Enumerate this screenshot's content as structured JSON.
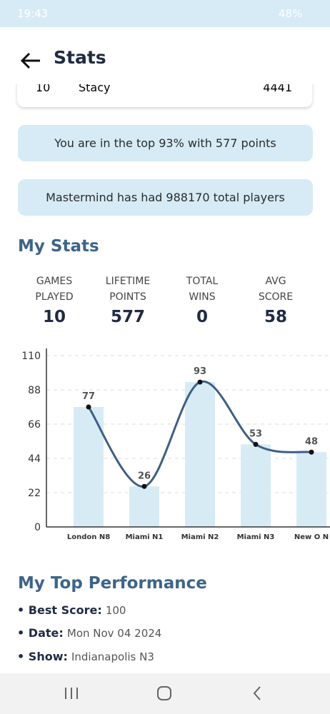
{
  "status_bar": {
    "time": "19:43",
    "battery": "48%"
  },
  "header": {
    "title": "Stats"
  },
  "leaderboard_row": {
    "rank": "10",
    "name": "Stacy",
    "points": "4441"
  },
  "banners": [
    "You are in the top 93% with 577 points",
    "Mastermind has had 988170 total players"
  ],
  "my_stats": {
    "title": "My Stats",
    "items": [
      {
        "label_lines": [
          "GAMES",
          "PLAYED"
        ],
        "value": "10"
      },
      {
        "label_lines": [
          "LIFETIME",
          "POINTS"
        ],
        "value": "577"
      },
      {
        "label_lines": [
          "TOTAL",
          "WINS"
        ],
        "value": "0"
      },
      {
        "label_lines": [
          "AVG",
          "SCORE"
        ],
        "value": "58"
      }
    ]
  },
  "chart_data": {
    "type": "bar-line",
    "categories": [
      "London N8",
      "Miami N1",
      "Miami N2",
      "Miami N3",
      "New O N"
    ],
    "values": [
      77,
      26,
      93,
      53,
      48
    ],
    "bar_color": "#d7ebf5",
    "line_color": "#3d5f86",
    "point_color": "#111111",
    "ylim": [
      0,
      110
    ],
    "yticks": [
      0,
      22,
      44,
      66,
      88,
      110
    ],
    "grid": true
  },
  "top_performance": {
    "title": "My Top Performance",
    "items": [
      {
        "label": "Best Score:",
        "value": "100"
      },
      {
        "label": "Date:",
        "value": "Mon Nov 04 2024"
      },
      {
        "label": "Show:",
        "value": "Indianapolis N3"
      }
    ]
  }
}
